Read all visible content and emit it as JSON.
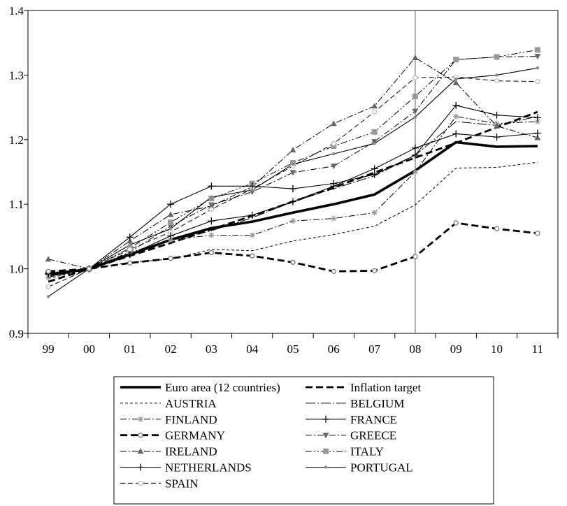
{
  "chart_data": {
    "type": "line",
    "x": [
      "99",
      "00",
      "01",
      "02",
      "03",
      "04",
      "05",
      "06",
      "07",
      "08",
      "09",
      "10",
      "11"
    ],
    "ylim": [
      0.9,
      1.4
    ],
    "yticks": [
      "0.9",
      "1.0",
      "1.1",
      "1.2",
      "1.3",
      "1.4"
    ],
    "reference_line_x": "08",
    "grid": false,
    "legend_position": "bottom",
    "series": [
      {
        "name": "Euro area (12 countries)",
        "style": "thick-solid",
        "marker": "none",
        "color": "#000000",
        "values": [
          0.99,
          1.0,
          1.022,
          1.045,
          1.063,
          1.073,
          1.087,
          1.1,
          1.115,
          1.152,
          1.196,
          1.189,
          1.19
        ]
      },
      {
        "name": "Inflation target",
        "style": "thick-dash",
        "marker": "none",
        "color": "#000000",
        "values": [
          0.98,
          1.0,
          1.02,
          1.04,
          1.061,
          1.082,
          1.104,
          1.126,
          1.149,
          1.172,
          1.195,
          1.219,
          1.243
        ]
      },
      {
        "name": "AUSTRIA",
        "style": "thin-dash",
        "marker": "none",
        "color": "#000000",
        "values": [
          0.985,
          1.0,
          1.01,
          1.015,
          1.03,
          1.028,
          1.043,
          1.053,
          1.066,
          1.099,
          1.156,
          1.157,
          1.165
        ]
      },
      {
        "name": "BELGIUM",
        "style": "long-dash",
        "marker": "none",
        "color": "#000000",
        "values": [
          0.99,
          1.0,
          1.024,
          1.044,
          1.059,
          1.079,
          1.104,
          1.124,
          1.144,
          1.176,
          1.228,
          1.222,
          1.236
        ]
      },
      {
        "name": "FINLAND",
        "style": "dash-dot",
        "marker": "asterisk",
        "color": "#000000",
        "values": [
          0.987,
          1.0,
          1.025,
          1.045,
          1.052,
          1.052,
          1.074,
          1.078,
          1.087,
          1.15,
          1.236,
          1.225,
          1.228
        ]
      },
      {
        "name": "FRANCE",
        "style": "solid",
        "marker": "plus",
        "color": "#000000",
        "values": [
          0.992,
          1.0,
          1.022,
          1.051,
          1.074,
          1.083,
          1.104,
          1.128,
          1.155,
          1.187,
          1.209,
          1.204,
          1.21
        ]
      },
      {
        "name": "GERMANY",
        "style": "thick-dash",
        "marker": "circle",
        "color": "#000000",
        "values": [
          0.996,
          1.0,
          1.009,
          1.016,
          1.025,
          1.02,
          1.01,
          0.996,
          0.997,
          1.019,
          1.071,
          1.062,
          1.055
        ]
      },
      {
        "name": "GREECE",
        "style": "dash-dot",
        "marker": "triangle-down",
        "color": "#000000",
        "values": [
          0.992,
          1.0,
          1.026,
          1.066,
          1.099,
          1.119,
          1.149,
          1.159,
          1.197,
          1.244,
          1.324,
          1.328,
          1.329
        ]
      },
      {
        "name": "IRELAND",
        "style": "dash-dot",
        "marker": "triangle-up",
        "color": "#000000",
        "values": [
          1.015,
          1.0,
          1.043,
          1.084,
          1.097,
          1.127,
          1.184,
          1.225,
          1.252,
          1.327,
          1.288,
          1.221,
          1.203
        ]
      },
      {
        "name": "ITALY",
        "style": "dash-dot-dot",
        "marker": "square",
        "color": "#000000",
        "values": [
          0.994,
          1.0,
          1.032,
          1.072,
          1.109,
          1.132,
          1.164,
          1.19,
          1.212,
          1.267,
          1.324,
          1.328,
          1.339
        ]
      },
      {
        "name": "NETHERLANDS",
        "style": "solid",
        "marker": "plus",
        "color": "#000000",
        "values": [
          0.993,
          1.0,
          1.049,
          1.1,
          1.128,
          1.128,
          1.124,
          1.132,
          1.146,
          1.176,
          1.253,
          1.238,
          1.234
        ]
      },
      {
        "name": "PORTUGAL",
        "style": "solid",
        "marker": "dot",
        "color": "#000000",
        "values": [
          0.957,
          1.0,
          1.037,
          1.062,
          1.111,
          1.122,
          1.162,
          1.178,
          1.194,
          1.235,
          1.294,
          1.3,
          1.311
        ]
      },
      {
        "name": "SPAIN",
        "style": "dash",
        "marker": "circle-open",
        "color": "#000000",
        "values": [
          0.972,
          1.0,
          1.03,
          1.057,
          1.092,
          1.124,
          1.159,
          1.194,
          1.243,
          1.296,
          1.297,
          1.291,
          1.29
        ]
      }
    ]
  }
}
